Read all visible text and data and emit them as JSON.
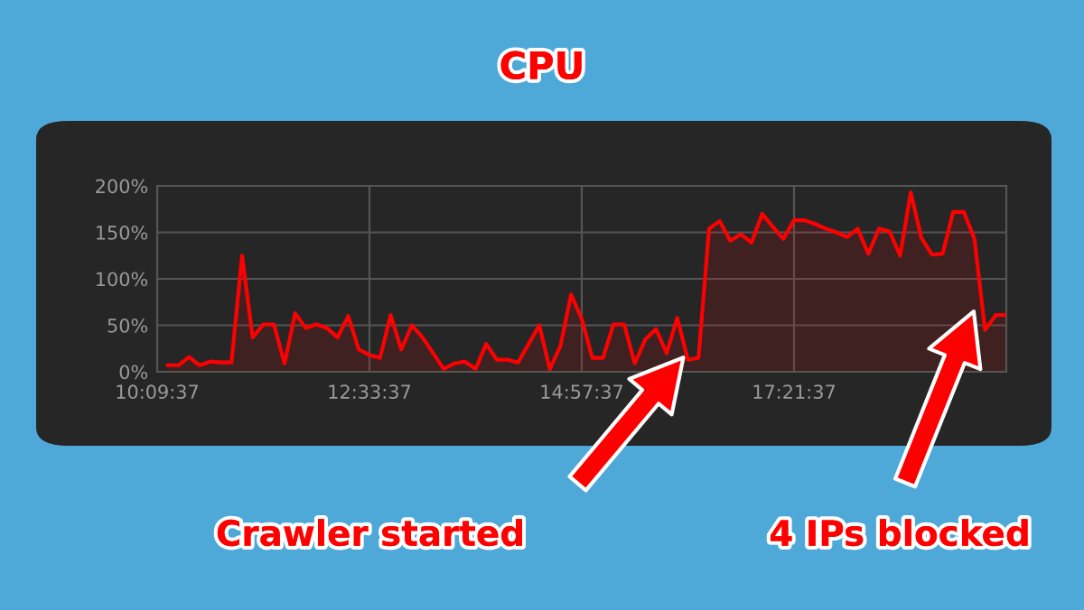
{
  "chart_data": {
    "type": "area",
    "title": "CPU",
    "x": [
      10.28,
      10.4,
      10.52,
      10.64,
      10.76,
      10.88,
      11.0,
      11.12,
      11.24,
      11.36,
      11.48,
      11.6,
      11.72,
      11.84,
      11.96,
      12.08,
      12.2,
      12.32,
      12.44,
      12.56,
      12.68,
      12.8,
      12.92,
      13.04,
      13.16,
      13.28,
      13.4,
      13.52,
      13.64,
      13.76,
      13.88,
      14.0,
      14.12,
      14.24,
      14.36,
      14.48,
      14.6,
      14.72,
      14.84,
      14.96,
      15.08,
      15.2,
      15.32,
      15.44,
      15.56,
      15.68,
      15.8,
      15.92,
      16.04,
      16.16,
      16.28,
      16.4,
      16.52,
      16.64,
      16.76,
      16.88,
      17.0,
      17.12,
      17.24,
      17.36,
      17.48,
      17.6,
      17.72,
      17.84,
      17.96,
      18.08,
      18.2,
      18.32,
      18.44,
      18.56,
      18.68,
      18.8,
      18.92,
      19.04,
      19.16,
      19.28,
      19.4,
      19.52,
      19.64,
      19.76
    ],
    "series": [
      {
        "color": "#ff0000",
        "values": [
          7,
          7,
          16,
          7,
          11,
          10,
          10,
          125,
          37,
          51,
          51,
          9,
          63,
          47,
          51,
          47,
          37,
          60,
          24,
          18,
          15,
          61,
          24,
          50,
          37,
          20,
          3,
          9,
          11,
          3,
          30,
          13,
          13,
          10,
          30,
          50,
          3,
          28,
          83,
          57,
          15,
          15,
          51,
          51,
          9,
          35,
          46,
          20,
          58,
          13,
          15,
          154,
          162,
          141,
          148,
          139,
          170,
          156,
          143,
          163,
          163,
          159,
          154,
          150,
          145,
          154,
          127,
          154,
          151,
          125,
          193,
          144,
          126,
          127,
          172,
          172,
          143,
          45,
          61,
          61
        ]
      }
    ],
    "xlim": [
      10.1603,
      19.7603
    ],
    "xticks": [
      {
        "value": 10.1603,
        "label": "10:09:37"
      },
      {
        "value": 12.5603,
        "label": "12:33:37"
      },
      {
        "value": 14.9603,
        "label": "14:57:37"
      },
      {
        "value": 17.3603,
        "label": "17:21:37"
      }
    ],
    "ylim": [
      0,
      200
    ],
    "yticks": [
      {
        "value": 0,
        "label": "0%"
      },
      {
        "value": 50,
        "label": "50%"
      },
      {
        "value": 100,
        "label": "100%"
      },
      {
        "value": 150,
        "label": "150%"
      },
      {
        "value": 200,
        "label": "200%"
      }
    ],
    "grid": true,
    "annotations": [
      "Crawler started",
      "4 IPs blocked"
    ]
  }
}
